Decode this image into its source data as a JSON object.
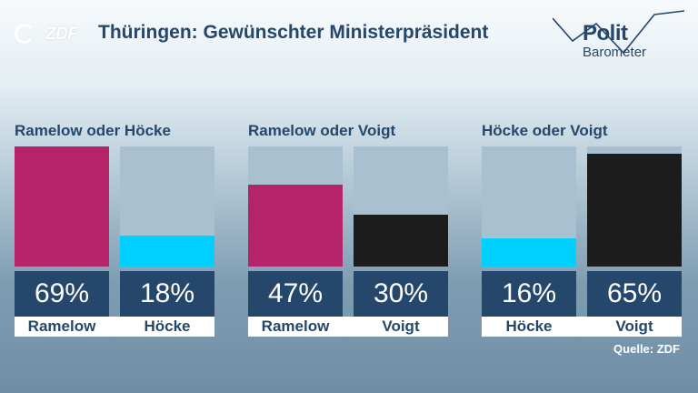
{
  "header": {
    "title": "Thüringen: Gewünschter Ministerpräsident",
    "logo_text": "ZDF",
    "brand_line1": "Polit",
    "brand_line2": "Barometer"
  },
  "source": "Quelle: ZDF",
  "colors": {
    "Ramelow": "#b5236b",
    "Höcke": "#00d0ff",
    "Voigt": "#1c1c1c",
    "track": "#a9c0d0",
    "label_box": "#24476b"
  },
  "chart_data": [
    {
      "type": "bar",
      "title": "Ramelow oder Höcke",
      "categories": [
        "Ramelow",
        "Höcke"
      ],
      "values": [
        69,
        18
      ],
      "value_labels": [
        "69%",
        "18%"
      ],
      "ylim": [
        0,
        69
      ]
    },
    {
      "type": "bar",
      "title": "Ramelow oder Voigt",
      "categories": [
        "Ramelow",
        "Voigt"
      ],
      "values": [
        47,
        30
      ],
      "value_labels": [
        "47%",
        "30%"
      ],
      "ylim": [
        0,
        69
      ]
    },
    {
      "type": "bar",
      "title": "Höcke oder Voigt",
      "categories": [
        "Höcke",
        "Voigt"
      ],
      "values": [
        16,
        65
      ],
      "value_labels": [
        "16%",
        "65%"
      ],
      "ylim": [
        0,
        69
      ]
    }
  ]
}
